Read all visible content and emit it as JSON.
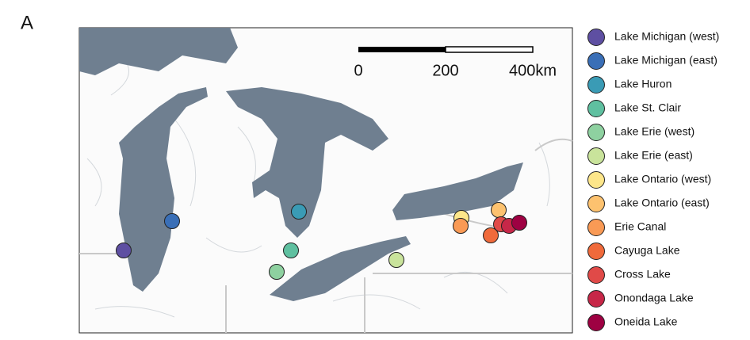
{
  "panel_label": "A",
  "scale_bar": {
    "labels": [
      "0",
      "200",
      "400km"
    ]
  },
  "sites": [
    {
      "name": "Lake Michigan (west)",
      "color": "#5e4fa2"
    },
    {
      "name": "Lake Michigan (east)",
      "color": "#3a6fb7"
    },
    {
      "name": "Lake Huron",
      "color": "#3a9bb5"
    },
    {
      "name": "Lake St. Clair",
      "color": "#5fc0a0"
    },
    {
      "name": "Lake Erie (west)",
      "color": "#8ed1a0"
    },
    {
      "name": "Lake Erie (east)",
      "color": "#c9e39b"
    },
    {
      "name": "Lake Ontario (west)",
      "color": "#fde68a"
    },
    {
      "name": "Lake Ontario (east)",
      "color": "#fdc26f"
    },
    {
      "name": "Erie Canal",
      "color": "#f99a55"
    },
    {
      "name": "Cayuga Lake",
      "color": "#f06a3b"
    },
    {
      "name": "Cross Lake",
      "color": "#e04a48"
    },
    {
      "name": "Onondaga Lake",
      "color": "#c72748"
    },
    {
      "name": "Oneida Lake",
      "color": "#9e0142"
    }
  ]
}
